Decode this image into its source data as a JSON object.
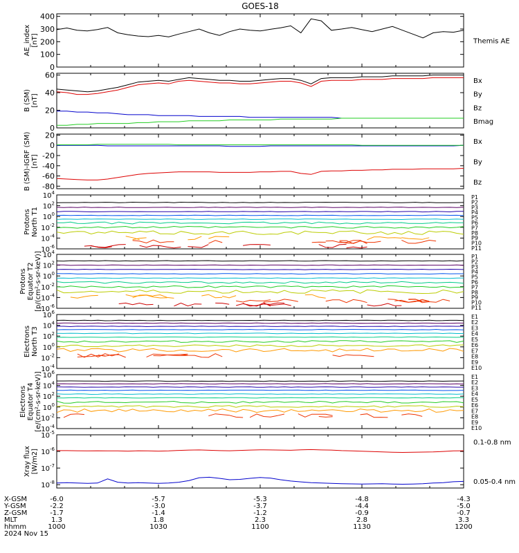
{
  "title": "GOES-18",
  "colors": {
    "black": "#000000",
    "red": "#dd0000",
    "green": "#22cc22",
    "blue": "#0000cc",
    "band": [
      "#000000",
      "#5a0066",
      "#2200aa",
      "#0055ee",
      "#00bbcc",
      "#00cc88",
      "#22cc22",
      "#bbcc00",
      "#ff9900",
      "#ee3300",
      "#cc0000"
    ]
  },
  "chart_data": [
    {
      "type": "line",
      "ylabel": "AE_index\n[nT]",
      "ylim": [
        0,
        420
      ],
      "ticks": [
        "400",
        "300",
        "200",
        "100",
        "0"
      ],
      "tick_values": [
        400,
        300,
        200,
        100,
        0
      ],
      "x": [
        1000,
        1005,
        1010,
        1015,
        1020,
        1025,
        1030,
        1035,
        1040,
        1045,
        1050,
        1055,
        1060,
        1065,
        1070,
        1075,
        1080,
        1085,
        1090,
        1095,
        1100,
        1105,
        1110,
        1115,
        1120,
        1125,
        1130,
        1135,
        1140,
        1145,
        1150,
        1155,
        1160,
        1165,
        1170,
        1175,
        1180,
        1185,
        1190,
        1195,
        1200
      ],
      "series": [
        {
          "name": "Themis AE",
          "color": "black",
          "values": [
            295,
            308,
            290,
            285,
            296,
            312,
            270,
            255,
            245,
            240,
            250,
            238,
            260,
            280,
            300,
            270,
            250,
            280,
            300,
            290,
            285,
            298,
            310,
            325,
            270,
            380,
            365,
            290,
            300,
            312,
            295,
            280,
            300,
            320,
            290,
            260,
            230,
            270,
            280,
            275,
            290
          ]
        }
      ],
      "legend": [
        {
          "text": "Themis AE",
          "color": "black"
        }
      ]
    },
    {
      "type": "line",
      "ylabel": "B (SM)\n[nT]",
      "ylim": [
        0,
        62
      ],
      "ticks": [
        "60",
        "40",
        "20",
        "0"
      ],
      "tick_values": [
        60,
        40,
        20,
        0
      ],
      "series": [
        {
          "name": "Bx",
          "color": "blue",
          "values": [
            19,
            19,
            18,
            18,
            17,
            17,
            16,
            15,
            15,
            15,
            14,
            14,
            14,
            14,
            13,
            13,
            13,
            13,
            13,
            12,
            12,
            12,
            12,
            12,
            12,
            12,
            12,
            12,
            11,
            11,
            11,
            11,
            11,
            11,
            11,
            11,
            11,
            11,
            11,
            11,
            11
          ]
        },
        {
          "name": "By",
          "color": "green",
          "values": [
            3,
            3,
            4,
            4,
            5,
            5,
            5,
            5,
            6,
            6,
            7,
            7,
            7,
            8,
            8,
            8,
            8,
            9,
            9,
            9,
            9,
            9,
            10,
            10,
            10,
            10,
            10,
            10,
            11,
            11,
            11,
            11,
            11,
            11,
            11,
            11,
            11,
            11,
            11,
            11,
            11
          ]
        },
        {
          "name": "Bz",
          "color": "red",
          "values": [
            41,
            40,
            38,
            38,
            39,
            41,
            43,
            46,
            49,
            50,
            51,
            50,
            53,
            54,
            53,
            52,
            51,
            51,
            50,
            50,
            51,
            52,
            53,
            53,
            51,
            47,
            53,
            54,
            54,
            54,
            55,
            55,
            55,
            56,
            56,
            56,
            56,
            57,
            57,
            57,
            57
          ]
        },
        {
          "name": "Bmag",
          "color": "black",
          "values": [
            44,
            43,
            42,
            41,
            42,
            44,
            46,
            49,
            52,
            53,
            54,
            53,
            55,
            57,
            56,
            55,
            54,
            54,
            53,
            53,
            54,
            55,
            56,
            56,
            54,
            50,
            56,
            57,
            57,
            57,
            58,
            58,
            58,
            59,
            59,
            59,
            59,
            60,
            60,
            60,
            60
          ]
        }
      ],
      "legend": [
        {
          "text": "Bx",
          "color": "blue"
        },
        {
          "text": "By",
          "color": "green"
        },
        {
          "text": "Bz",
          "color": "red"
        },
        {
          "text": "Bmag",
          "color": "black"
        }
      ]
    },
    {
      "type": "line",
      "ylabel": "B (SM)-IGRF (SM)\n[nT]",
      "ylim": [
        -85,
        22
      ],
      "ticks": [
        "20",
        "0",
        "-20",
        "-40",
        "-60",
        "-80"
      ],
      "tick_values": [
        20,
        0,
        -20,
        -40,
        -60,
        -80
      ],
      "series": [
        {
          "name": "Bx",
          "color": "blue",
          "values": [
            0,
            0,
            0,
            0,
            0,
            -1,
            -1,
            -1,
            -1,
            -1,
            -1,
            -1,
            -1,
            -1,
            -1,
            -1,
            -1,
            -2,
            -2,
            -2,
            -2,
            -1,
            -1,
            -1,
            -1,
            -1,
            -1,
            -1,
            -1,
            -1,
            -1,
            -1,
            -1,
            -1,
            -1,
            -1,
            -1,
            -1,
            -1,
            -1,
            0
          ]
        },
        {
          "name": "By",
          "color": "green",
          "values": [
            1,
            1,
            1,
            1,
            2,
            2,
            2,
            2,
            2,
            2,
            2,
            2,
            1,
            1,
            1,
            1,
            1,
            1,
            1,
            1,
            1,
            1,
            1,
            1,
            1,
            1,
            1,
            1,
            1,
            1,
            0,
            0,
            0,
            0,
            0,
            0,
            0,
            0,
            0,
            0,
            0
          ]
        },
        {
          "name": "Bz",
          "color": "red",
          "values": [
            -65,
            -66,
            -67,
            -68,
            -68,
            -66,
            -63,
            -60,
            -57,
            -55,
            -54,
            -53,
            -52,
            -52,
            -52,
            -52,
            -53,
            -53,
            -53,
            -53,
            -52,
            -52,
            -51,
            -51,
            -55,
            -57,
            -51,
            -50,
            -50,
            -49,
            -49,
            -48,
            -48,
            -47,
            -47,
            -47,
            -46,
            -46,
            -46,
            -46,
            -45
          ]
        }
      ],
      "legend": [
        {
          "text": "Bx",
          "color": "blue"
        },
        {
          "text": "By",
          "color": "green"
        },
        {
          "text": "Bz",
          "color": "red"
        }
      ]
    },
    {
      "type": "line",
      "ylabel": "Protons\nNorth T1",
      "ylog": [
        -6,
        4
      ],
      "ticks": [
        {
          "b": "10",
          "e": "4",
          "v": 4
        },
        {
          "b": "10",
          "e": "2",
          "v": 2
        },
        {
          "b": "10",
          "e": "0",
          "v": 0
        },
        {
          "b": "10",
          "e": "-2",
          "v": -2
        },
        {
          "b": "10",
          "e": "-4",
          "v": -4
        },
        {
          "b": "10",
          "e": "-6",
          "v": -6
        }
      ],
      "channels": [
        "P1",
        "P2",
        "P3",
        "P4",
        "P5",
        "P6",
        "P7",
        "P8",
        "P9",
        "P10",
        "P11"
      ],
      "levels": [
        2.6,
        1.7,
        0.9,
        0.2,
        -0.5,
        -1.2,
        -2.0,
        -3.0,
        -4.0,
        -4.7,
        -5.5
      ],
      "sparse_from": 8
    },
    {
      "type": "line",
      "ylabel": "Protons\nEquator T2\n[p/(cm²-s-sr-keV)]",
      "ylog": [
        -6,
        4
      ],
      "ticks": [
        {
          "b": "10",
          "e": "4",
          "v": 4
        },
        {
          "b": "10",
          "e": "2",
          "v": 2
        },
        {
          "b": "10",
          "e": "0",
          "v": 0
        },
        {
          "b": "10",
          "e": "-2",
          "v": -2
        },
        {
          "b": "10",
          "e": "-4",
          "v": -4
        },
        {
          "b": "10",
          "e": "-6",
          "v": -6
        }
      ],
      "channels": [
        "P1",
        "P2",
        "P3",
        "P4",
        "P5",
        "P6",
        "P7",
        "P8",
        "P9",
        "P10",
        "P11"
      ],
      "levels": [
        2.8,
        2.0,
        1.2,
        0.4,
        -0.4,
        -1.2,
        -2.0,
        -2.9,
        -3.8,
        -4.6,
        -5.3
      ],
      "sparse_from": 8
    },
    {
      "type": "line",
      "ylabel": "Electrons\nNorth T3",
      "ylog": [
        -4,
        6
      ],
      "ticks": [
        {
          "b": "10",
          "e": "6",
          "v": 6
        },
        {
          "b": "10",
          "e": "4",
          "v": 4
        },
        {
          "b": "10",
          "e": "2",
          "v": 2
        },
        {
          "b": "10",
          "e": "0",
          "v": 0
        },
        {
          "b": "10",
          "e": "-2",
          "v": -2
        },
        {
          "b": "10",
          "e": "-4",
          "v": -4
        }
      ],
      "channels": [
        "E1",
        "E2",
        "E3",
        "E4",
        "E5",
        "E6",
        "E7",
        "E8",
        "E9",
        "E10"
      ],
      "levels": [
        4.9,
        4.4,
        3.8,
        3.2,
        2.5,
        1.8,
        1.0,
        0.2,
        -0.6,
        -1.6
      ],
      "sparse_from": 9
    },
    {
      "type": "line",
      "ylabel": "Electrons\nEquator T4\n[e/(cm²-s-sr-keV)]",
      "ylog": [
        -4,
        6
      ],
      "ticks": [
        {
          "b": "10",
          "e": "6",
          "v": 6
        },
        {
          "b": "10",
          "e": "4",
          "v": 4
        },
        {
          "b": "10",
          "e": "2",
          "v": 2
        },
        {
          "b": "10",
          "e": "0",
          "v": 0
        },
        {
          "b": "10",
          "e": "-2",
          "v": -2
        },
        {
          "b": "10",
          "e": "-4",
          "v": -4
        }
      ],
      "channels": [
        "E1",
        "E2",
        "E3",
        "E4",
        "E5",
        "E6",
        "E7",
        "E8",
        "E9",
        "E10"
      ],
      "levels": [
        4.8,
        4.3,
        3.7,
        3.1,
        2.4,
        1.7,
        0.9,
        0.1,
        -0.7,
        -1.6
      ],
      "sparse_from": 9
    },
    {
      "type": "line",
      "ylabel": "Xray flux\n[W/m2]",
      "ylog": [
        -8.2,
        -5
      ],
      "ticks": [
        {
          "b": "10",
          "e": "-5",
          "v": -5
        },
        {
          "b": "10",
          "e": "-6",
          "v": -6
        },
        {
          "b": "10",
          "e": "-7",
          "v": -7
        },
        {
          "b": "10",
          "e": "-8",
          "v": -8
        }
      ],
      "series": [
        {
          "name": "0.1-0.8 nm",
          "color": "red",
          "values": [
            -5.95,
            -5.95,
            -5.96,
            -5.97,
            -5.96,
            -5.97,
            -5.97,
            -5.98,
            -5.96,
            -5.97,
            -5.98,
            -5.97,
            -5.94,
            -5.92,
            -5.91,
            -5.93,
            -5.95,
            -5.96,
            -5.94,
            -5.92,
            -5.9,
            -5.91,
            -5.92,
            -5.93,
            -5.9,
            -5.89,
            -5.91,
            -5.92,
            -5.95,
            -5.97,
            -5.99,
            -6.01,
            -6.03,
            -6.05,
            -6.06,
            -6.05,
            -6.04,
            -6.03,
            -6.0,
            -5.97,
            -5.96
          ]
        },
        {
          "name": "0.05-0.4 nm",
          "color": "blue",
          "values": [
            -7.9,
            -7.88,
            -7.9,
            -7.92,
            -7.9,
            -7.65,
            -7.85,
            -7.9,
            -7.88,
            -7.9,
            -7.92,
            -7.9,
            -7.85,
            -7.75,
            -7.58,
            -7.55,
            -7.62,
            -7.7,
            -7.68,
            -7.62,
            -7.57,
            -7.6,
            -7.7,
            -7.78,
            -7.83,
            -7.88,
            -7.9,
            -7.92,
            -7.94,
            -7.95,
            -7.96,
            -7.95,
            -7.94,
            -7.96,
            -7.97,
            -7.96,
            -7.94,
            -7.9,
            -7.88,
            -7.82,
            -7.8
          ]
        }
      ],
      "legend": [
        {
          "text": "0.1-0.8 nm",
          "color": "red"
        },
        {
          "text": "0.05-0.4 nm",
          "color": "blue"
        }
      ]
    }
  ],
  "xaxis": {
    "row_labels": [
      "X-GSM",
      "Y-GSM",
      "Z-GSM",
      "MLT",
      "hhmm",
      "2024 Nov 15"
    ],
    "columns": [
      [
        "-6.0",
        "-2.2",
        "-1.7",
        "1.3",
        "1000"
      ],
      [
        "-5.7",
        "-3.0",
        "-1.4",
        "1.8",
        "1030"
      ],
      [
        "-5.3",
        "-3.7",
        "-1.2",
        "2.3",
        "1100"
      ],
      [
        "-4.8",
        "-4.4",
        "-0.9",
        "2.8",
        "1130"
      ],
      [
        "-4.3",
        "-5.0",
        "-0.7",
        "3.3",
        "1200"
      ]
    ]
  }
}
